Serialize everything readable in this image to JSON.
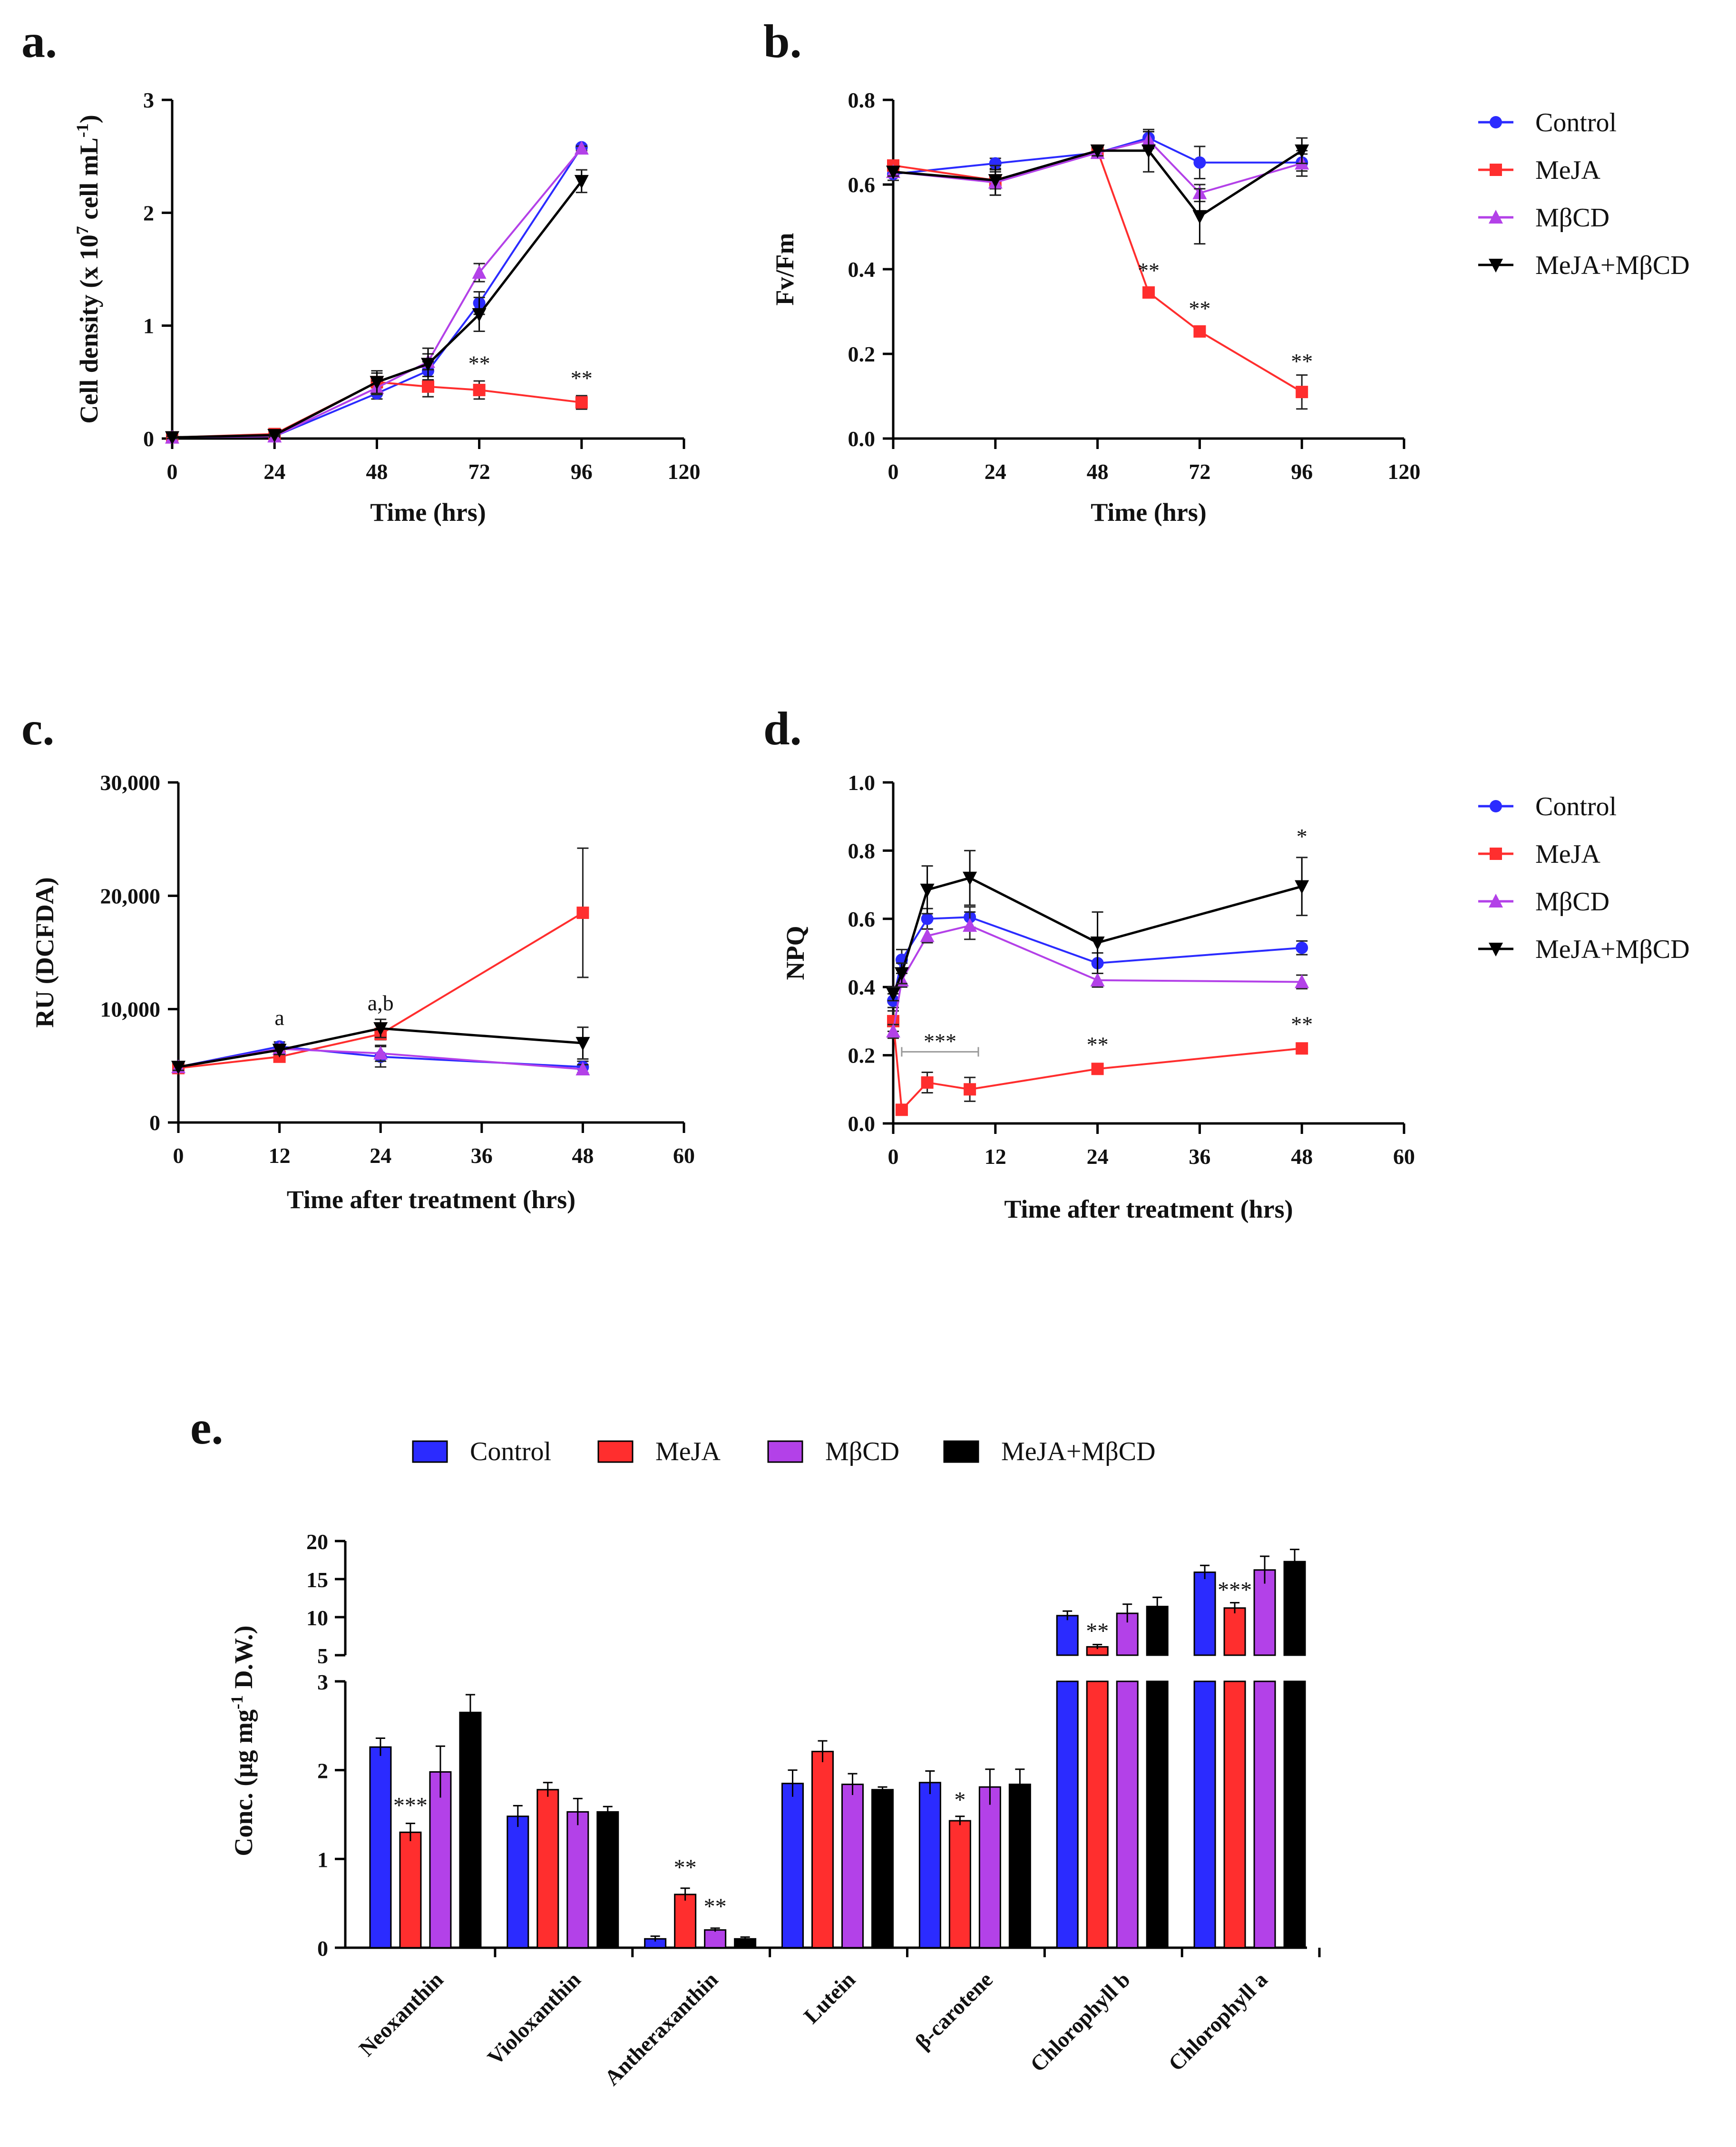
{
  "chart_data": [
    {
      "panel": "a.",
      "type": "line",
      "xlabel": "Time (hrs)",
      "ylabel_parts": [
        "Cell density (x 10",
        "7",
        " cell mL",
        "-1",
        ")"
      ],
      "xlim": [
        0,
        120
      ],
      "ylim": [
        0,
        3
      ],
      "xticks": [
        0,
        24,
        48,
        72,
        96,
        120
      ],
      "yticks": [
        0,
        1,
        2,
        3
      ],
      "series": [
        {
          "name": "Control",
          "x": [
            0,
            24,
            48,
            60,
            72,
            96
          ],
          "y": [
            0.01,
            0.02,
            0.4,
            0.6,
            1.2,
            2.58
          ],
          "err": [
            0.01,
            0.01,
            0.05,
            0.08,
            0.1,
            0.02
          ]
        },
        {
          "name": "MeJA",
          "x": [
            0,
            24,
            48,
            60,
            72,
            96
          ],
          "y": [
            0.01,
            0.04,
            0.5,
            0.46,
            0.43,
            0.32
          ],
          "err": [
            0.01,
            0.01,
            0.08,
            0.09,
            0.08,
            0.06
          ]
        },
        {
          "name": "MβCD",
          "x": [
            0,
            24,
            48,
            60,
            72,
            96
          ],
          "y": [
            0.01,
            0.02,
            0.45,
            0.68,
            1.47,
            2.57
          ],
          "err": [
            0.01,
            0.01,
            0.06,
            0.07,
            0.08,
            0.02
          ]
        },
        {
          "name": "MeJA+MβCD",
          "x": [
            0,
            24,
            48,
            60,
            72,
            96
          ],
          "y": [
            0.01,
            0.03,
            0.5,
            0.66,
            1.1,
            2.28
          ],
          "err": [
            0.01,
            0.01,
            0.1,
            0.14,
            0.15,
            0.1
          ]
        }
      ],
      "annotations": [
        {
          "text": "**",
          "x": 72,
          "y": 0.6
        },
        {
          "text": "**",
          "x": 96,
          "y": 0.47
        }
      ]
    },
    {
      "panel": "b.",
      "type": "line",
      "xlabel": "Time (hrs)",
      "ylabel": "Fv/Fm",
      "xlim": [
        0,
        120
      ],
      "ylim": [
        0,
        0.8
      ],
      "xticks": [
        0,
        24,
        48,
        72,
        96,
        120
      ],
      "yticks": [
        0.0,
        0.2,
        0.4,
        0.6,
        0.8
      ],
      "ytick_labels": [
        "0.0",
        "0.2",
        "0.4",
        "0.6",
        "0.8"
      ],
      "series": [
        {
          "name": "Control",
          "x": [
            0,
            24,
            48,
            60,
            72,
            96
          ],
          "y": [
            0.625,
            0.65,
            0.675,
            0.71,
            0.652,
            0.652
          ],
          "err": [
            0.015,
            0.012,
            0.012,
            0.015,
            0.038,
            0.02
          ]
        },
        {
          "name": "MeJA",
          "x": [
            0,
            24,
            48,
            60,
            72,
            96
          ],
          "y": [
            0.645,
            0.61,
            0.68,
            0.345,
            0.253,
            0.11
          ],
          "err": [
            0.012,
            0.02,
            0.01,
            0.008,
            0.012,
            0.04
          ]
        },
        {
          "name": "MβCD",
          "x": [
            0,
            24,
            48,
            60,
            72,
            96
          ],
          "y": [
            0.63,
            0.605,
            0.675,
            0.705,
            0.58,
            0.65
          ],
          "err": [
            0.01,
            0.03,
            0.012,
            0.02,
            0.02,
            0.03
          ]
        },
        {
          "name": "MeJA+MβCD",
          "x": [
            0,
            24,
            48,
            60,
            72,
            96
          ],
          "y": [
            0.63,
            0.61,
            0.68,
            0.68,
            0.525,
            0.68
          ],
          "err": [
            0.01,
            0.035,
            0.012,
            0.05,
            0.065,
            0.03
          ]
        }
      ],
      "annotations": [
        {
          "text": "**",
          "x": 60,
          "y": 0.38
        },
        {
          "text": "**",
          "x": 72,
          "y": 0.29
        },
        {
          "text": "**",
          "x": 96,
          "y": 0.165
        }
      ]
    },
    {
      "panel": "c.",
      "type": "line",
      "xlabel": "Time after treatment (hrs)",
      "ylabel": "RU (DCFDA)",
      "xlim": [
        0,
        60
      ],
      "ylim": [
        0,
        30000
      ],
      "xticks": [
        0,
        12,
        24,
        36,
        48,
        60
      ],
      "yticks": [
        0,
        10000,
        20000,
        30000
      ],
      "ytick_labels": [
        "0",
        "10,000",
        "20,000",
        "30,000"
      ],
      "series": [
        {
          "name": "Control",
          "x": [
            0,
            12,
            24,
            48
          ],
          "y": [
            4900,
            6700,
            5800,
            4900
          ],
          "err": [
            300,
            400,
            900,
            500
          ]
        },
        {
          "name": "MeJA",
          "x": [
            0,
            12,
            24,
            48
          ],
          "y": [
            4800,
            5800,
            7800,
            18500
          ],
          "err": [
            300,
            400,
            500,
            5700
          ]
        },
        {
          "name": "MβCD",
          "x": [
            0,
            12,
            24,
            48
          ],
          "y": [
            4900,
            6500,
            6100,
            4700
          ],
          "err": [
            300,
            400,
            700,
            400
          ]
        },
        {
          "name": "MeJA+MβCD",
          "x": [
            0,
            12,
            24,
            48
          ],
          "y": [
            4900,
            6400,
            8300,
            7000
          ],
          "err": [
            300,
            400,
            800,
            1400
          ]
        }
      ],
      "annotations": [
        {
          "text": "a",
          "x": 12,
          "y": 8600
        },
        {
          "text": "a,b",
          "x": 24,
          "y": 9900
        }
      ]
    },
    {
      "panel": "d.",
      "type": "line",
      "xlabel": "Time after treatment (hrs)",
      "ylabel": "NPQ",
      "xlim": [
        0,
        60
      ],
      "ylim": [
        0,
        1
      ],
      "xticks": [
        0,
        12,
        24,
        36,
        48,
        60
      ],
      "yticks": [
        0.0,
        0.2,
        0.4,
        0.6,
        0.8,
        1.0
      ],
      "ytick_labels": [
        "0.0",
        "0.2",
        "0.4",
        "0.6",
        "0.8",
        "1.0"
      ],
      "series": [
        {
          "name": "Control",
          "x": [
            0,
            1,
            4,
            9,
            24,
            48
          ],
          "y": [
            0.36,
            0.48,
            0.6,
            0.605,
            0.47,
            0.515
          ],
          "err": [
            0.02,
            0.03,
            0.03,
            0.03,
            0.03,
            0.02
          ]
        },
        {
          "name": "MeJA",
          "x": [
            0,
            1,
            4,
            9,
            24,
            48
          ],
          "y": [
            0.3,
            0.04,
            0.12,
            0.1,
            0.16,
            0.22
          ],
          "err": [
            0.03,
            0.005,
            0.03,
            0.035,
            0.01,
            0.01
          ]
        },
        {
          "name": "MβCD",
          "x": [
            0,
            1,
            4,
            9,
            24,
            48
          ],
          "y": [
            0.27,
            0.42,
            0.55,
            0.58,
            0.42,
            0.415
          ],
          "err": [
            0.02,
            0.02,
            0.02,
            0.04,
            0.02,
            0.02
          ]
        },
        {
          "name": "MeJA+MβCD",
          "x": [
            0,
            1,
            4,
            9,
            24,
            48
          ],
          "y": [
            0.38,
            0.44,
            0.685,
            0.72,
            0.53,
            0.695
          ],
          "err": [
            0.02,
            0.03,
            0.07,
            0.08,
            0.09,
            0.085
          ]
        }
      ],
      "annotations": [
        {
          "text": "***",
          "x": 5.5,
          "y": 0.22
        },
        {
          "text": "**",
          "x": 24,
          "y": 0.21
        },
        {
          "text": "**",
          "x": 48,
          "y": 0.27
        },
        {
          "text": "*",
          "x": 48,
          "y": 0.82
        }
      ],
      "bracket": {
        "x_from": 1,
        "x_to": 10,
        "y": 0.21
      }
    },
    {
      "panel": "e.",
      "type": "bar",
      "ylabel_parts": [
        "Conc. (µg mg",
        "-1",
        " D.W.)"
      ],
      "categories": [
        "Neoxanthin",
        "Violoxanthin",
        "Antheraxanthin",
        "Lutein",
        "β-carotene",
        "Chlorophyll b",
        "Chlorophyll a"
      ],
      "broken_axis": {
        "lower_range": [
          0,
          3
        ],
        "upper_range": [
          5,
          20
        ],
        "lower_ticks": [
          0,
          1,
          2,
          3
        ],
        "upper_ticks": [
          5,
          10,
          15,
          20
        ]
      },
      "series": [
        {
          "name": "Control",
          "values": [
            2.26,
            1.48,
            0.1,
            1.85,
            1.86,
            10.2,
            15.9
          ],
          "err": [
            0.1,
            0.12,
            0.03,
            0.15,
            0.13,
            0.6,
            0.9
          ]
        },
        {
          "name": "MeJA",
          "values": [
            1.3,
            1.78,
            0.6,
            2.21,
            1.43,
            6.1,
            11.2
          ],
          "err": [
            0.1,
            0.08,
            0.07,
            0.12,
            0.05,
            0.3,
            0.7
          ]
        },
        {
          "name": "MβCD",
          "values": [
            1.98,
            1.53,
            0.2,
            1.84,
            1.81,
            10.5,
            16.2
          ],
          "err": [
            0.29,
            0.15,
            0.02,
            0.12,
            0.2,
            1.2,
            1.8
          ]
        },
        {
          "name": "MeJA+MβCD",
          "values": [
            2.65,
            1.53,
            0.1,
            1.78,
            1.84,
            11.4,
            17.3
          ],
          "err": [
            0.2,
            0.06,
            0.02,
            0.03,
            0.17,
            1.2,
            1.6
          ]
        }
      ],
      "annotations": [
        {
          "text": "***",
          "category": 0,
          "series": 1,
          "y": 1.52
        },
        {
          "text": "**",
          "category": 2,
          "series": 1,
          "y": 0.82
        },
        {
          "text": "**",
          "category": 2,
          "series": 2,
          "y": 0.38
        },
        {
          "text": "*",
          "category": 4,
          "series": 1,
          "y": 1.58
        },
        {
          "text": "**",
          "category": 5,
          "series": 1,
          "y": 7.2
        },
        {
          "text": "***",
          "category": 6,
          "series": 1,
          "y": 12.6
        }
      ]
    }
  ],
  "legend": {
    "entries": [
      "Control",
      "MeJA",
      "MβCD",
      "MeJA+MβCD"
    ]
  },
  "colors": {
    "Control": "#2b2bff",
    "MeJA": "#ff2e2e",
    "MβCD": "#b341e8",
    "MeJA+MβCD": "#000000"
  }
}
